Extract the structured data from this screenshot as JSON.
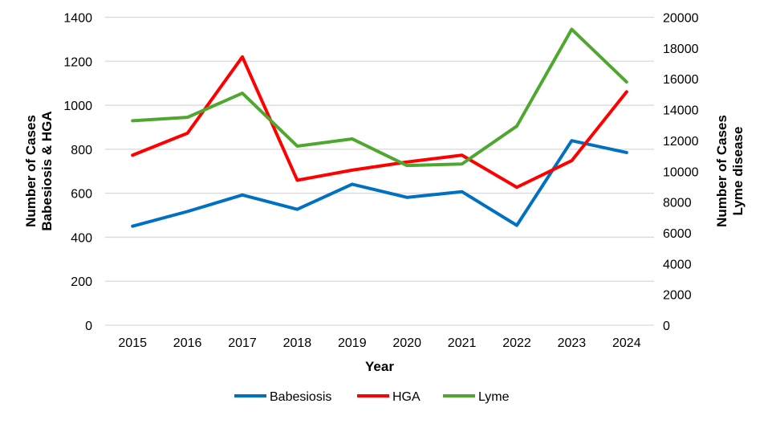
{
  "chart_data": {
    "type": "line",
    "title": "",
    "xlabel": "Year",
    "ylabel": [
      "Number of Cases",
      "Babesiosis & HGA"
    ],
    "y2label": [
      "Number of Cases",
      "Lyme disease"
    ],
    "categories": [
      "2015",
      "2016",
      "2017",
      "2018",
      "2019",
      "2020",
      "2021",
      "2022",
      "2023",
      "2024"
    ],
    "ylim": [
      0,
      1400
    ],
    "y2lim": [
      0,
      20000
    ],
    "yticks": [
      "0",
      "200",
      "400",
      "600",
      "800",
      "1000",
      "1200",
      "1400"
    ],
    "y2ticks": [
      "0",
      "2000",
      "4000",
      "6000",
      "8000",
      "10000",
      "12000",
      "14000",
      "16000",
      "18000",
      "20000"
    ],
    "grid": true,
    "legend_position": "bottom",
    "series": [
      {
        "name": "Babesiosis",
        "axis": "left",
        "color": "#0070C0",
        "values": [
          450,
          517,
          592,
          527,
          641,
          581,
          607,
          454,
          839,
          785
        ]
      },
      {
        "name": "HGA",
        "axis": "left",
        "color": "#FF0000",
        "values": [
          773,
          873,
          1220,
          659,
          705,
          742,
          773,
          627,
          748,
          1061
        ]
      },
      {
        "name": "Lyme",
        "axis": "right",
        "color": "#4EA72E",
        "values": [
          13280,
          13500,
          15070,
          11630,
          12100,
          10370,
          10470,
          12930,
          19220,
          15800
        ]
      }
    ]
  }
}
